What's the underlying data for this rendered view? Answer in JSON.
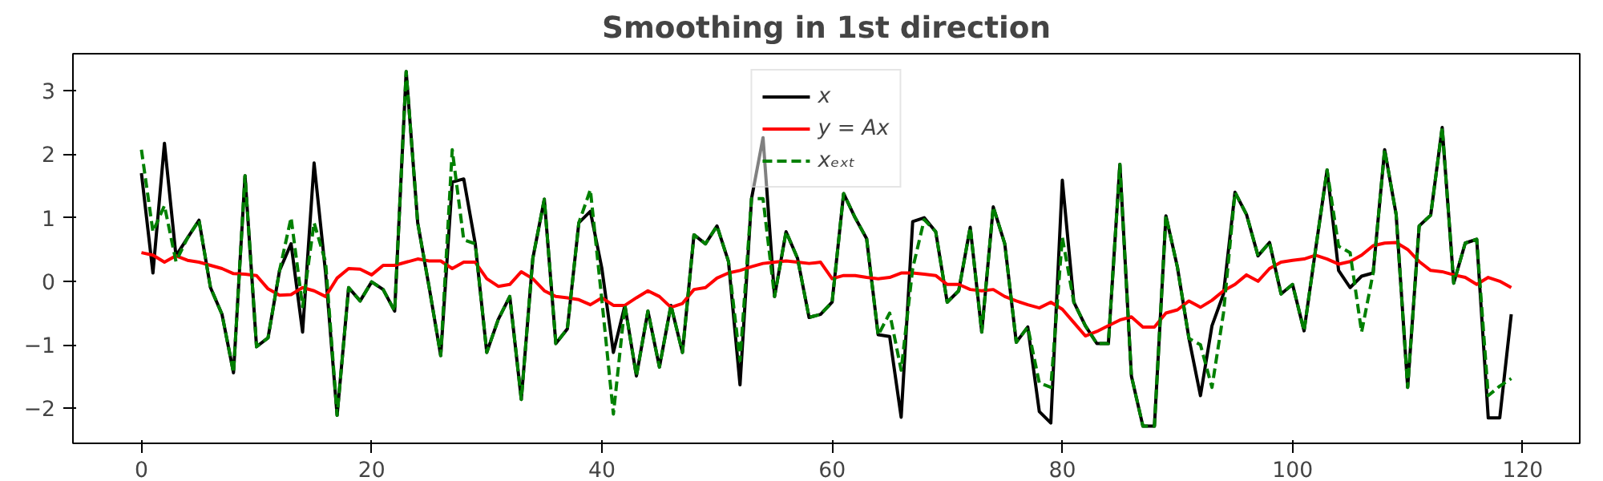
{
  "chart_data": {
    "type": "line",
    "title": "Smoothing in 1st direction",
    "x": [
      0,
      1,
      2,
      3,
      4,
      5,
      6,
      7,
      8,
      9,
      10,
      11,
      12,
      13,
      14,
      15,
      16,
      17,
      18,
      19,
      20,
      21,
      22,
      23,
      24,
      25,
      26,
      27,
      28,
      29,
      30,
      31,
      32,
      33,
      34,
      35,
      36,
      37,
      38,
      39,
      40,
      41,
      42,
      43,
      44,
      45,
      46,
      47,
      48,
      49,
      50,
      51,
      52,
      53,
      54,
      55,
      56,
      57,
      58,
      59,
      60,
      61,
      62,
      63,
      64,
      65,
      66,
      67,
      68,
      69,
      70,
      71,
      72,
      73,
      74,
      75,
      76,
      77,
      78,
      79,
      80,
      81,
      82,
      83,
      84,
      85,
      86,
      87,
      88,
      89,
      90,
      91,
      92,
      93,
      94,
      95,
      96,
      97,
      98,
      99,
      100,
      101,
      102,
      103,
      104,
      105,
      106,
      107,
      108,
      109,
      110,
      111,
      112,
      113,
      114,
      115,
      116,
      117,
      118,
      119
    ],
    "series": [
      {
        "name": "x",
        "color": "#000000",
        "line_style": "solid",
        "values": [
          1.7,
          0.13,
          2.17,
          0.4,
          0.68,
          0.96,
          -0.1,
          -0.52,
          -1.44,
          1.66,
          -1.03,
          -0.89,
          0.17,
          0.59,
          -0.8,
          1.86,
          0.13,
          -2.11,
          -0.1,
          -0.31,
          -0.01,
          -0.13,
          -0.47,
          3.3,
          0.92,
          -0.1,
          -1.17,
          1.56,
          1.61,
          0.59,
          -1.12,
          -0.6,
          -0.24,
          -1.86,
          0.36,
          1.29,
          -0.98,
          -0.75,
          0.92,
          1.1,
          0.2,
          -1.12,
          -0.38,
          -1.49,
          -0.47,
          -1.35,
          -0.38,
          -1.12,
          0.73,
          0.59,
          0.87,
          0.31,
          -1.63,
          1.3,
          2.26,
          -0.24,
          0.78,
          0.36,
          -0.57,
          -0.52,
          -0.33,
          1.38,
          1.0,
          0.67,
          -0.84,
          -0.87,
          -2.14,
          0.94,
          1.0,
          0.78,
          -0.33,
          -0.15,
          0.85,
          -0.8,
          1.17,
          0.59,
          -0.96,
          -0.72,
          -2.05,
          -2.23,
          1.59,
          -0.33,
          -0.7,
          -0.98,
          -0.98,
          1.84,
          -1.49,
          -2.28,
          -2.28,
          1.03,
          0.22,
          -0.9,
          -1.8,
          -0.7,
          -0.2,
          1.4,
          1.05,
          0.4,
          0.61,
          -0.2,
          -0.05,
          -0.78,
          0.5,
          1.75,
          0.17,
          -0.1,
          0.08,
          0.13,
          2.07,
          1.05,
          -1.67,
          0.87,
          1.04,
          2.42,
          -0.03,
          0.6,
          0.66,
          -2.15,
          -2.15,
          -0.52
        ]
      },
      {
        "name": "y = Ax",
        "color": "#ff0000",
        "line_style": "solid",
        "values": [
          0.45,
          0.41,
          0.3,
          0.4,
          0.33,
          0.3,
          0.25,
          0.2,
          0.12,
          0.11,
          0.09,
          -0.12,
          -0.22,
          -0.21,
          -0.1,
          -0.15,
          -0.24,
          0.05,
          0.2,
          0.19,
          0.1,
          0.25,
          0.25,
          0.3,
          0.35,
          0.32,
          0.32,
          0.2,
          0.3,
          0.3,
          0.04,
          -0.08,
          -0.05,
          0.15,
          0.04,
          -0.15,
          -0.24,
          -0.26,
          -0.29,
          -0.37,
          -0.26,
          -0.38,
          -0.38,
          -0.26,
          -0.15,
          -0.24,
          -0.41,
          -0.35,
          -0.13,
          -0.1,
          0.05,
          0.13,
          0.17,
          0.23,
          0.28,
          0.3,
          0.32,
          0.3,
          0.28,
          0.3,
          0.04,
          0.09,
          0.09,
          0.06,
          0.04,
          0.06,
          0.13,
          0.13,
          0.11,
          0.09,
          -0.05,
          -0.05,
          -0.13,
          -0.15,
          -0.13,
          -0.24,
          -0.31,
          -0.37,
          -0.42,
          -0.33,
          -0.44,
          -0.65,
          -0.86,
          -0.79,
          -0.7,
          -0.61,
          -0.56,
          -0.72,
          -0.72,
          -0.5,
          -0.45,
          -0.31,
          -0.41,
          -0.3,
          -0.15,
          -0.05,
          0.1,
          0.0,
          0.2,
          0.3,
          0.33,
          0.35,
          0.41,
          0.35,
          0.27,
          0.31,
          0.41,
          0.56,
          0.6,
          0.61,
          0.5,
          0.31,
          0.17,
          0.15,
          0.1,
          0.06,
          -0.05,
          0.06,
          0.0,
          -0.1
        ]
      },
      {
        "name": "xₑₓₜ",
        "color": "#008000",
        "line_style": "dashed",
        "values": [
          2.07,
          0.78,
          1.19,
          0.31,
          0.68,
          0.96,
          -0.1,
          -0.52,
          -1.44,
          1.66,
          -1.03,
          -0.89,
          0.17,
          1.0,
          -0.4,
          0.92,
          0.3,
          -2.11,
          -0.1,
          -0.31,
          -0.01,
          -0.13,
          -0.47,
          3.3,
          0.92,
          -0.1,
          -1.17,
          2.07,
          0.65,
          0.59,
          -1.12,
          -0.6,
          -0.24,
          -1.86,
          0.36,
          1.29,
          -0.98,
          -0.75,
          0.92,
          1.44,
          -0.3,
          -2.09,
          -0.38,
          -1.49,
          -0.47,
          -1.35,
          -0.38,
          -1.12,
          0.73,
          0.59,
          0.87,
          0.31,
          -1.25,
          1.3,
          1.3,
          -0.24,
          0.78,
          0.36,
          -0.57,
          -0.52,
          -0.33,
          1.38,
          1.0,
          0.67,
          -0.85,
          -0.5,
          -1.4,
          0.2,
          0.97,
          0.78,
          -0.33,
          -0.15,
          0.85,
          -0.8,
          1.17,
          0.59,
          -0.96,
          -0.72,
          -1.6,
          -1.67,
          0.69,
          -0.33,
          -0.7,
          -0.98,
          -0.98,
          1.84,
          -1.49,
          -2.28,
          -2.28,
          1.03,
          0.22,
          -0.9,
          -1.0,
          -1.67,
          -0.5,
          1.4,
          1.05,
          0.4,
          0.61,
          -0.2,
          -0.05,
          -0.78,
          0.5,
          1.75,
          0.55,
          0.45,
          -0.8,
          0.13,
          2.07,
          1.05,
          -1.67,
          0.87,
          1.04,
          2.42,
          -0.03,
          0.6,
          0.66,
          -1.8,
          -1.65,
          -1.53
        ]
      }
    ],
    "xlim": [
      -5.95,
      124.95
    ],
    "ylim": [
      -2.55,
      3.58
    ],
    "xticks": [
      0,
      20,
      40,
      60,
      80,
      100,
      120
    ],
    "yticks": [
      -2,
      -1,
      0,
      1,
      2,
      3
    ],
    "grid": false,
    "legend": "top",
    "marker": "none"
  }
}
